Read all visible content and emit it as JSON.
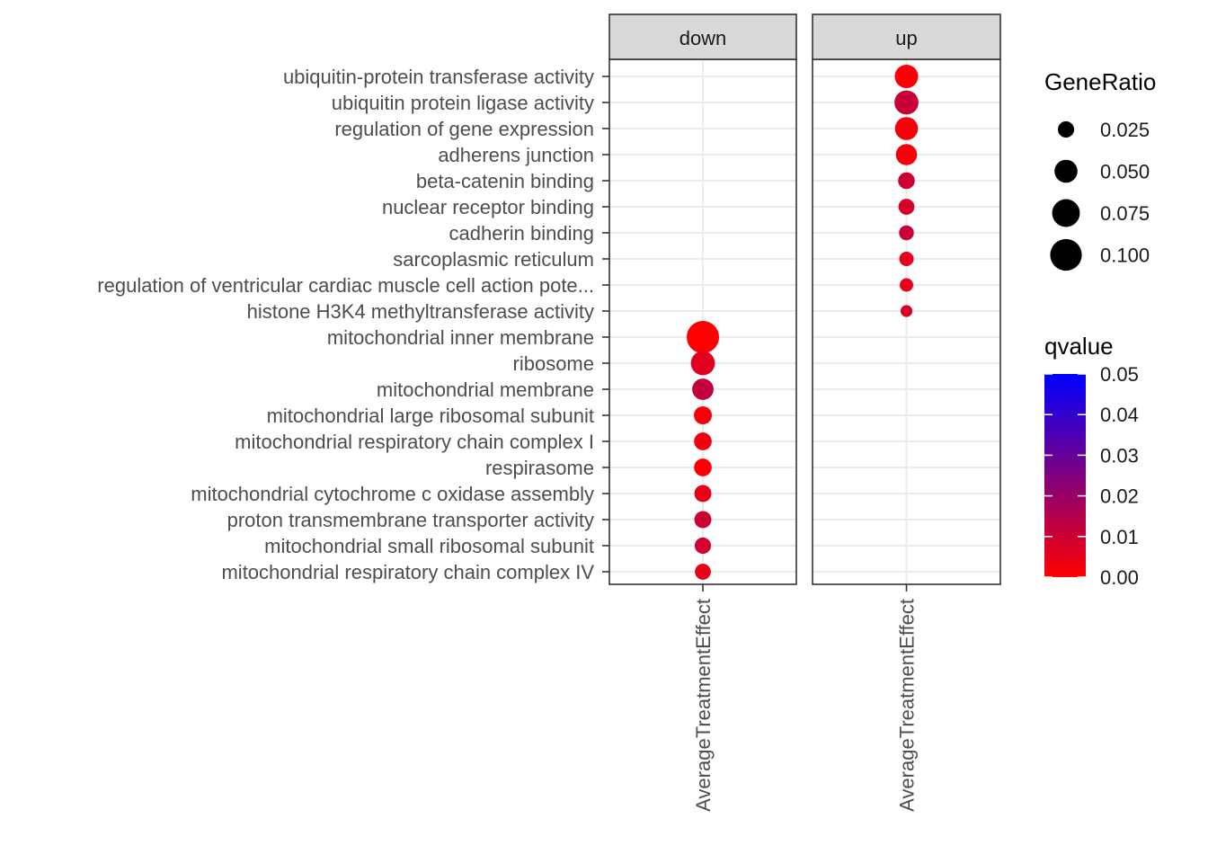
{
  "chart_data": {
    "type": "scatter",
    "subtype": "faceted dot plot",
    "x_label_text": "AverageTreatmentEffect",
    "facets": [
      "down",
      "up"
    ],
    "categories": [
      "ubiquitin-protein transferase activity",
      "ubiquitin protein ligase activity",
      "regulation of gene expression",
      "adherens junction",
      "beta-catenin binding",
      "nuclear receptor binding",
      "cadherin binding",
      "sarcoplasmic reticulum",
      "regulation of ventricular cardiac muscle cell action pote...",
      "histone H3K4 methyltransferase activity",
      "mitochondrial inner membrane",
      "ribosome",
      "mitochondrial membrane",
      "mitochondrial large ribosomal subunit",
      "mitochondrial respiratory chain complex I",
      "respirasome",
      "mitochondrial cytochrome c oxidase assembly",
      "proton transmembrane transporter activity",
      "mitochondrial small ribosomal subunit",
      "mitochondrial respiratory chain complex IV"
    ],
    "points": [
      {
        "facet": "up",
        "term": "ubiquitin-protein transferase activity",
        "gene_ratio": 0.052,
        "qvalue": 0.001
      },
      {
        "facet": "up",
        "term": "ubiquitin protein ligase activity",
        "gene_ratio": 0.055,
        "qvalue": 0.011
      },
      {
        "facet": "up",
        "term": "regulation of gene expression",
        "gene_ratio": 0.05,
        "qvalue": 0.002
      },
      {
        "facet": "up",
        "term": "adherens junction",
        "gene_ratio": 0.042,
        "qvalue": 0.002
      },
      {
        "facet": "up",
        "term": "beta-catenin binding",
        "gene_ratio": 0.026,
        "qvalue": 0.01
      },
      {
        "facet": "up",
        "term": "nuclear receptor binding",
        "gene_ratio": 0.024,
        "qvalue": 0.008
      },
      {
        "facet": "up",
        "term": "cadherin binding",
        "gene_ratio": 0.021,
        "qvalue": 0.011
      },
      {
        "facet": "up",
        "term": "sarcoplasmic reticulum",
        "gene_ratio": 0.02,
        "qvalue": 0.005
      },
      {
        "facet": "up",
        "term": "regulation of ventricular cardiac muscle cell action pote...",
        "gene_ratio": 0.018,
        "qvalue": 0.005
      },
      {
        "facet": "up",
        "term": "histone H3K4 methyltransferase activity",
        "gene_ratio": 0.015,
        "qvalue": 0.008
      },
      {
        "facet": "down",
        "term": "mitochondrial inner membrane",
        "gene_ratio": 0.105,
        "qvalue": 0.0
      },
      {
        "facet": "down",
        "term": "ribosome",
        "gene_ratio": 0.055,
        "qvalue": 0.006
      },
      {
        "facet": "down",
        "term": "mitochondrial membrane",
        "gene_ratio": 0.043,
        "qvalue": 0.012
      },
      {
        "facet": "down",
        "term": "mitochondrial large ribosomal subunit",
        "gene_ratio": 0.03,
        "qvalue": 0.002
      },
      {
        "facet": "down",
        "term": "mitochondrial respiratory chain complex I",
        "gene_ratio": 0.029,
        "qvalue": 0.003
      },
      {
        "facet": "down",
        "term": "respirasome",
        "gene_ratio": 0.029,
        "qvalue": 0.001
      },
      {
        "facet": "down",
        "term": "mitochondrial cytochrome c oxidase assembly",
        "gene_ratio": 0.027,
        "qvalue": 0.005
      },
      {
        "facet": "down",
        "term": "proton transmembrane transporter activity",
        "gene_ratio": 0.027,
        "qvalue": 0.01
      },
      {
        "facet": "down",
        "term": "mitochondrial small ribosomal subunit",
        "gene_ratio": 0.025,
        "qvalue": 0.009
      },
      {
        "facet": "down",
        "term": "mitochondrial respiratory chain complex IV",
        "gene_ratio": 0.024,
        "qvalue": 0.005
      }
    ],
    "size_legend": {
      "title": "GeneRatio",
      "breaks": [
        0.025,
        0.05,
        0.075,
        0.1
      ],
      "labels": [
        "0.025",
        "0.050",
        "0.075",
        "0.100"
      ]
    },
    "color_legend": {
      "title": "qvalue",
      "range": [
        0,
        0.05
      ],
      "breaks": [
        0.0,
        0.01,
        0.02,
        0.03,
        0.04,
        0.05
      ],
      "labels": [
        "0.00",
        "0.01",
        "0.02",
        "0.03",
        "0.04",
        "0.05"
      ],
      "low_color": "#ff0000",
      "high_color": "#0000ff"
    },
    "colors": {
      "strip_fill": "#d9d9d9",
      "panel_border": "#333333",
      "grid": "#ebebeb",
      "text": "#4d4d4d"
    }
  }
}
